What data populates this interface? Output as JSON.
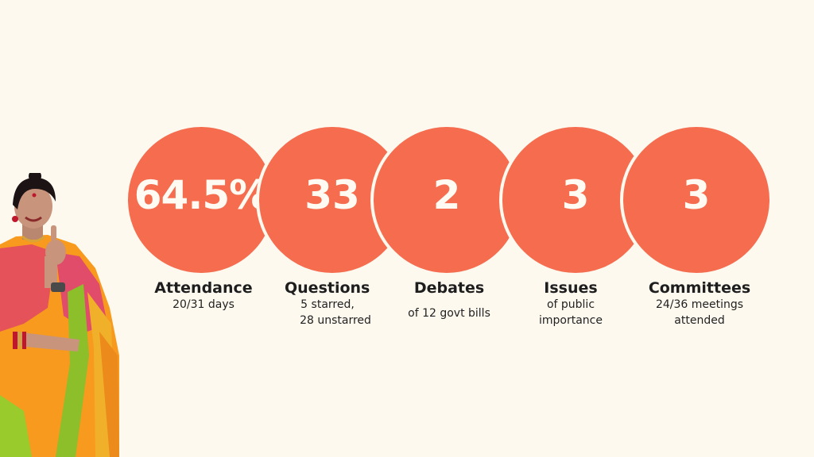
{
  "stats": [
    {
      "value": "64.5%",
      "title": "Attendance",
      "detail": [
        "20/31 days"
      ]
    },
    {
      "value": "33",
      "title": "Questions",
      "detail": [
        "5 starred,",
        "28 unstarred"
      ]
    },
    {
      "value": "2",
      "title": "Debates",
      "detail": [
        "of 12 govt bills"
      ]
    },
    {
      "value": "3",
      "title": "Issues",
      "detail": [
        "of public",
        "importance"
      ]
    },
    {
      "value": "3",
      "title": "Committees",
      "detail": [
        "24/36 meetings",
        "attended"
      ]
    }
  ],
  "colors": {
    "background": "#fdf9ef",
    "circle": "#f56c4f",
    "saree_orange": "#f79a1e",
    "saree_pink": "#e5525a",
    "saree_green": "#8cbf2a"
  },
  "icons": [
    "person-photo"
  ]
}
